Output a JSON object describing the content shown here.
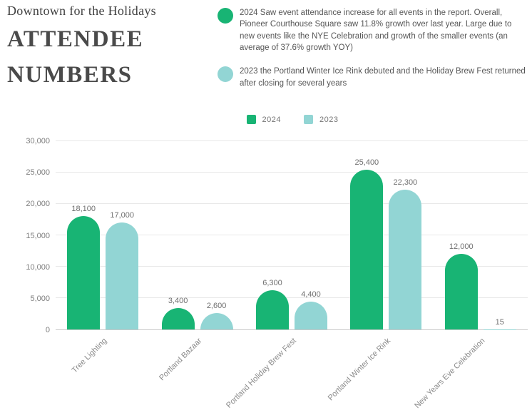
{
  "header": {
    "eyebrow": "Downtown for the Holidays",
    "title_line1": "ATTENDEE",
    "title_line2": "NUMBERS",
    "notes": [
      {
        "color": "#18B474",
        "text": "2024 Saw event attendance increase for all events in the report.  Overall, Pioneer Courthouse Square saw 11.8% growth over last year. Large due to new events like the NYE Celebration and growth of the smaller events (an average of 37.6% growth YOY)"
      },
      {
        "color": "#92D5D4",
        "text": "2023 the Portland Winter Ice Rink debuted and the Holiday Brew Fest returned after closing for several years"
      }
    ]
  },
  "chart_data": {
    "type": "bar",
    "title": "ATTENDEE NUMBERS",
    "categories": [
      "Tree Lighting",
      "Portland Bazaar",
      "Portland Holiday Brew Fest",
      "Portland Winter Ice Rink",
      "New Years Eve Celebration"
    ],
    "series": [
      {
        "name": "2024",
        "color": "#18B474",
        "values": [
          18100,
          3400,
          6300,
          25400,
          12000
        ],
        "value_labels": [
          "18,100",
          "3,400",
          "6,300",
          "25,400",
          "12,000"
        ]
      },
      {
        "name": "2023",
        "color": "#92D5D4",
        "values": [
          17000,
          2600,
          4400,
          22300,
          15
        ],
        "value_labels": [
          "17,000",
          "2,600",
          "4,400",
          "22,300",
          "15"
        ]
      }
    ],
    "xlabel": "",
    "ylabel": "",
    "ylim": [
      0,
      30000
    ],
    "yticks": [
      0,
      5000,
      10000,
      15000,
      20000,
      25000,
      30000
    ],
    "ytick_labels": [
      "0",
      "5,000",
      "10,000",
      "15,000",
      "20,000",
      "25,000",
      "30,000"
    ],
    "grid": true,
    "legend_position": "top-center"
  }
}
